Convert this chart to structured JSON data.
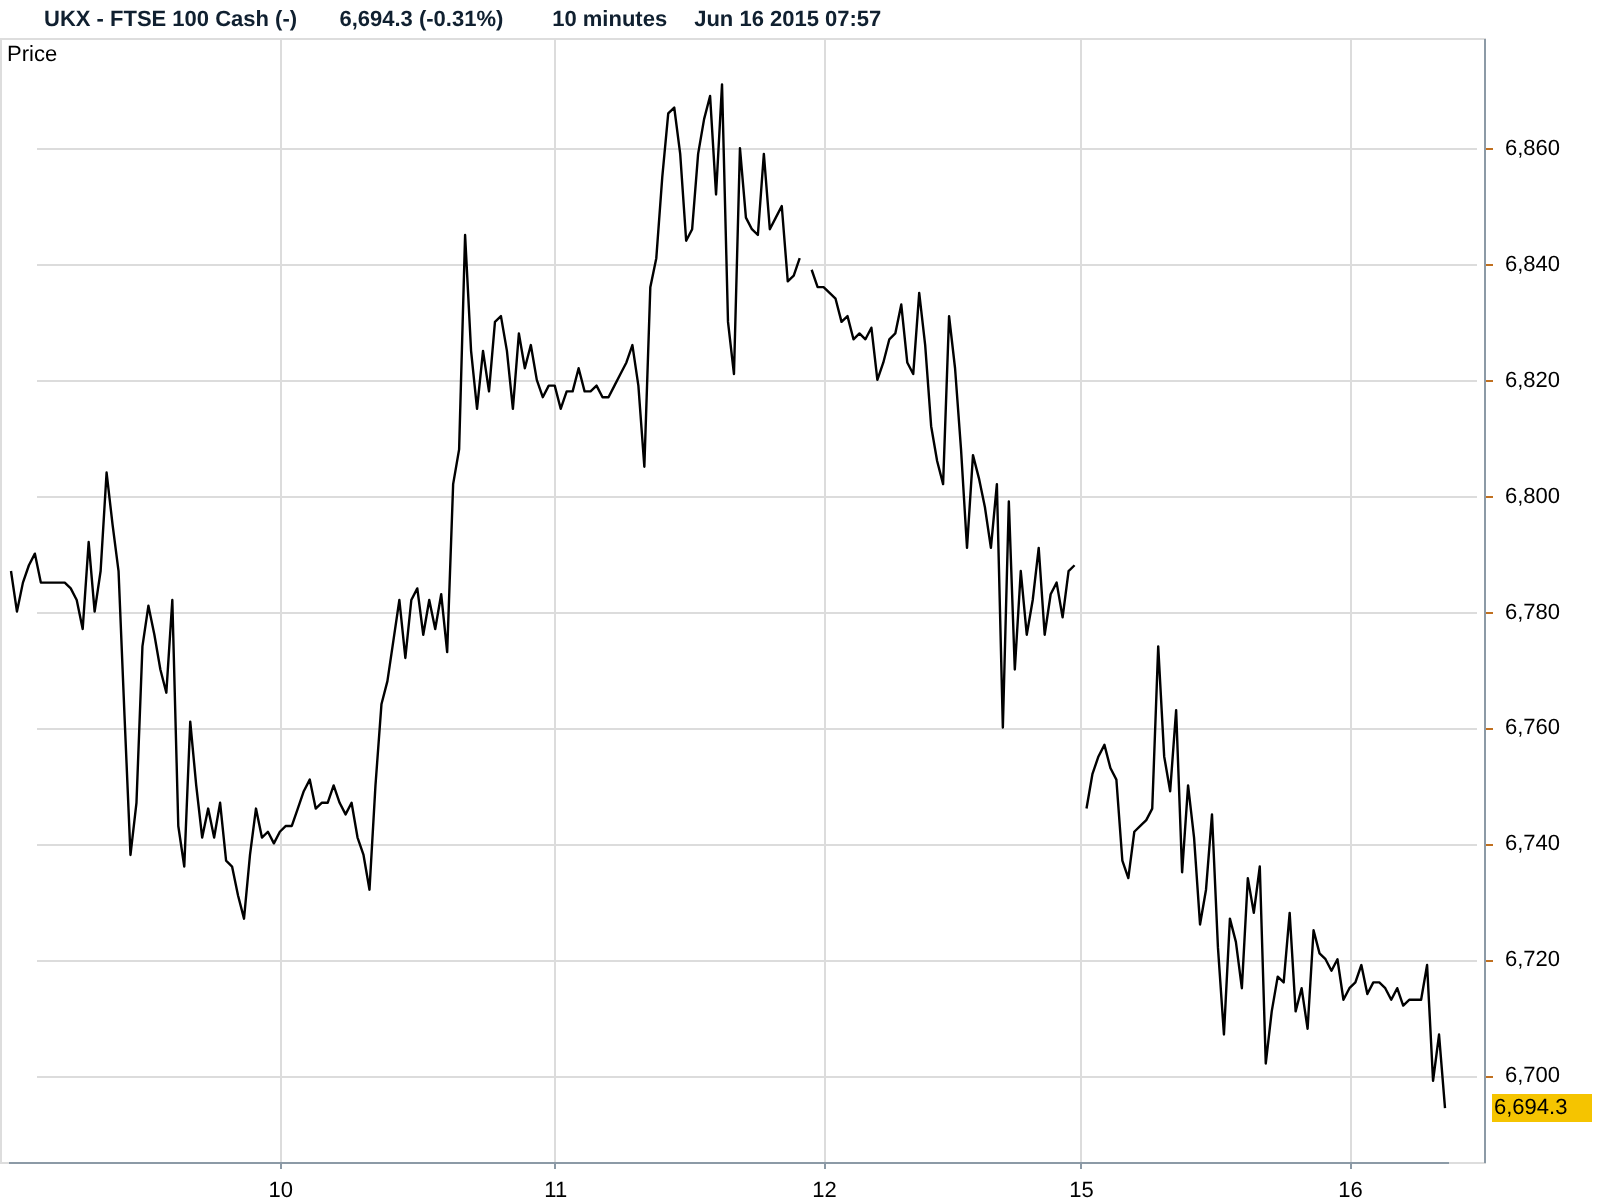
{
  "chart_data": {
    "type": "line",
    "title": "UKX - FTSE 100 Cash (-)",
    "ylabel": "Price",
    "annotations": [
      "6,694.3 (-0.31%)",
      "10 minutes",
      "Jun 16 2015 07:57",
      "6,694.3"
    ],
    "categories": [
      null,
      null,
      null,
      null,
      null,
      null,
      null,
      null,
      null,
      null,
      null,
      null,
      null,
      null,
      null,
      null,
      null,
      null,
      null,
      null,
      null,
      null,
      null,
      null,
      null,
      null,
      null,
      null,
      null,
      null,
      null,
      null,
      null,
      null,
      null,
      null,
      null,
      null,
      null,
      null,
      null,
      null,
      null,
      null,
      null,
      "10",
      null,
      null,
      null,
      null,
      null,
      null,
      null,
      null,
      null,
      null,
      null,
      null,
      null,
      null,
      null,
      null,
      null,
      null,
      null,
      null,
      null,
      null,
      null,
      null,
      null,
      null,
      null,
      null,
      null,
      null,
      null,
      null,
      null,
      null,
      null,
      null,
      null,
      null,
      null,
      null,
      null,
      null,
      null,
      null,
      null,
      "11",
      null,
      null,
      null,
      null,
      null,
      null,
      null,
      null,
      null,
      null,
      null,
      null,
      null,
      null,
      null,
      null,
      null,
      null,
      null,
      null,
      null,
      null,
      null,
      null,
      null,
      null,
      null,
      null,
      null,
      null,
      null,
      null,
      null,
      null,
      null,
      null,
      null,
      null,
      null,
      null,
      null,
      null,
      null,
      null,
      "12",
      null,
      null,
      null,
      null,
      null,
      null,
      null,
      null,
      null,
      null,
      null,
      null,
      null,
      null,
      null,
      null,
      null,
      null,
      null,
      null,
      null,
      null,
      null,
      null,
      null,
      null,
      null,
      null,
      null,
      null,
      null,
      null,
      null,
      null,
      null,
      null,
      null,
      null,
      null,
      null,
      null,
      null,
      "15",
      null,
      null,
      null,
      null,
      null,
      null,
      null,
      null,
      null,
      null,
      null,
      null,
      null,
      null,
      null,
      null,
      null,
      null,
      null,
      null,
      null,
      null,
      null,
      null,
      null,
      null,
      null,
      null,
      null,
      null,
      null,
      null,
      null,
      null,
      null,
      null,
      null,
      null,
      null,
      null,
      null,
      null,
      null,
      null,
      "16",
      null,
      null,
      null,
      null,
      null,
      null,
      null,
      null,
      null,
      null,
      null,
      null,
      null,
      null,
      null,
      null
    ],
    "series": [
      {
        "color": "#000000",
        "values": [
          6787,
          6780,
          6785,
          6788,
          6790,
          6785,
          6785,
          6785,
          6785,
          6785,
          6784,
          6782,
          6777,
          6792,
          6780,
          6787,
          6804,
          6795,
          6787,
          6762,
          6738,
          6747,
          6774,
          6781,
          6776,
          6770,
          6766,
          6782,
          6743,
          6736,
          6761,
          6750,
          6741,
          6746,
          6741,
          6747,
          6737,
          6736,
          6731,
          6727,
          6738,
          6746,
          6741,
          6742,
          6740,
          6742,
          6743,
          6743,
          6746,
          6749,
          6751,
          6746,
          6747,
          6747,
          6750,
          6747,
          6745,
          6747,
          6741,
          6738,
          6732,
          6750,
          6764,
          6768,
          6775,
          6782,
          6772,
          6782,
          6784,
          6776,
          6782,
          6777,
          6783,
          6773,
          6802,
          6808,
          6845,
          6825,
          6815,
          6825,
          6818,
          6830,
          6831,
          6825,
          6815,
          6828,
          6822,
          6826,
          6820,
          6817,
          6819,
          6819,
          6815,
          6818,
          6818,
          6822,
          6818,
          6818,
          6819,
          6817,
          6817,
          6819,
          6821,
          6823,
          6826,
          6819,
          6805,
          6836,
          6841,
          6855,
          6866,
          6867,
          6859,
          6844,
          6846,
          6859,
          6865,
          6869,
          6852,
          6871,
          6830,
          6821,
          6860,
          6848,
          6846,
          6845,
          6859,
          6846,
          6848,
          6850,
          6837,
          6838,
          6841,
          null,
          6839,
          6836,
          6836,
          6835,
          6834,
          6830,
          6831,
          6827,
          6828,
          6827,
          6829,
          6820,
          6823,
          6827,
          6828,
          6833,
          6823,
          6821,
          6835,
          6826,
          6812,
          6806,
          6802,
          6831,
          6822,
          6808,
          6791,
          6807,
          6803,
          6798,
          6791,
          6802,
          6760,
          6799,
          6770,
          6787,
          6776,
          6782,
          6791,
          6776,
          6783,
          6785,
          6779,
          6787,
          6788,
          null,
          6746,
          6752,
          6755,
          6757,
          6753,
          6751,
          6737,
          6734,
          6742,
          6743,
          6744,
          6746,
          6774,
          6755,
          6749,
          6763,
          6735,
          6750,
          6741,
          6726,
          6732,
          6745,
          6722,
          6707,
          6727,
          6723,
          6715,
          6734,
          6728,
          6736,
          6702,
          6711,
          6717,
          6716,
          6728,
          6711,
          6715,
          6708,
          6725,
          6721,
          6720,
          6718,
          6720,
          6713,
          6715,
          6716,
          6719,
          6714,
          6716,
          6716,
          6715,
          6713,
          6715,
          6712,
          6713,
          6713,
          6713,
          6719,
          6699,
          6707,
          6694.3
        ]
      }
    ],
    "ylim": [
      6685,
      6879
    ],
    "yticks": [
      {
        "value": 6700,
        "label": "6,700"
      },
      {
        "value": 6720,
        "label": "6,720"
      },
      {
        "value": 6740,
        "label": "6,740"
      },
      {
        "value": 6760,
        "label": "6,760"
      },
      {
        "value": 6780,
        "label": "6,780"
      },
      {
        "value": 6800,
        "label": "6,800"
      },
      {
        "value": 6820,
        "label": "6,820"
      },
      {
        "value": 6840,
        "label": "6,840"
      },
      {
        "value": 6860,
        "label": "6,860"
      }
    ],
    "grid": true
  }
}
